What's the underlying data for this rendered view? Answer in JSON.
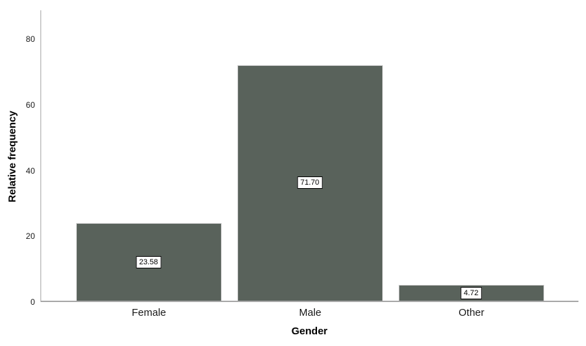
{
  "chart_data": {
    "type": "bar",
    "title": "",
    "categories": [
      "Female",
      "Male",
      "Other"
    ],
    "values": [
      23.58,
      71.7,
      4.72
    ],
    "value_labels": [
      "23.58",
      "71.70",
      "4.72"
    ],
    "xlabel": "Gender",
    "ylabel": "Relative frequency",
    "yticks": [
      0,
      20,
      40,
      60,
      80
    ],
    "ytick_labels": [
      "0",
      "20",
      "40",
      "60",
      "80"
    ],
    "ylim": [
      0,
      88.8
    ],
    "grid": false,
    "legend": "none",
    "bar_color": "#59625b",
    "bar_border_color": "#c9c9c9",
    "axis_color": "#a9a9a9",
    "value_label_box": {
      "background": "#ffffff",
      "border": "#000000"
    }
  }
}
